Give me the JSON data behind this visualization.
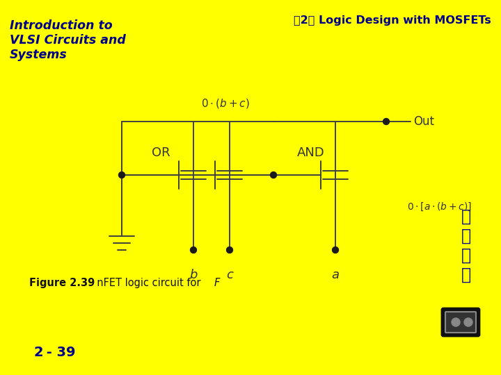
{
  "bg_outer": "#FFFF00",
  "bg_right_blue": "#4DA6FF",
  "bg_inner": "#FFFFFF",
  "title_left": "Introduction to\nVLSI Circuits and\nSystems",
  "title_right": "第2章 Logic Design with MOSFETs",
  "title_color": "#00008B",
  "slide_number_bold": "2",
  "slide_number_rest": " - 39",
  "fig_label_bold": "Figure 2.39",
  "fig_label_rest": "  nFET logic circuit for ",
  "fig_label_italic": "F",
  "label_OR": "OR",
  "label_AND": "AND",
  "label_Out": "Out",
  "label_b": "b",
  "label_c": "c",
  "label_a": "a",
  "circuit_color": "#404040",
  "dot_color": "#1a1a1a",
  "chinese_chars": [
    "印",
    "機",
    "圖",
    "章"
  ],
  "chinese_color": "#00008B"
}
